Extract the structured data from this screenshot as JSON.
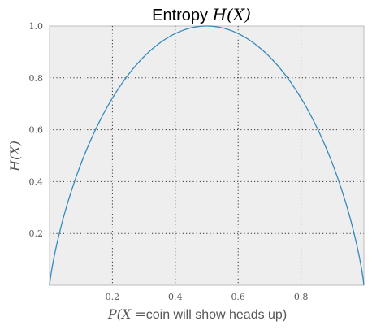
{
  "chart_data": {
    "type": "line",
    "title": {
      "text": "Entropy ",
      "math": "H(X)"
    },
    "xlabel": {
      "math_prefix": "P(X =",
      "text": "coin will show heads up)"
    },
    "ylabel": "H(X)",
    "xlim": [
      0,
      1
    ],
    "ylim": [
      0,
      1.0
    ],
    "xticks": [
      0.2,
      0.4,
      0.6,
      0.8
    ],
    "yticks": [
      0.2,
      0.4,
      0.6,
      0.8,
      1.0
    ],
    "xtick_labels": [
      "0.2",
      "0.4",
      "0.6",
      "0.8"
    ],
    "ytick_labels": [
      "0.2",
      "0.4",
      "0.6",
      "0.8",
      "1.0"
    ],
    "grid": true,
    "series": [
      {
        "function": "binary_entropy",
        "color": "#348ABD",
        "x": [
          0.005,
          0.01,
          0.02,
          0.03,
          0.05,
          0.075,
          0.1,
          0.15,
          0.2,
          0.25,
          0.3,
          0.35,
          0.4,
          0.45,
          0.5,
          0.55,
          0.6,
          0.65,
          0.7,
          0.75,
          0.8,
          0.85,
          0.9,
          0.925,
          0.95,
          0.97,
          0.98,
          0.99,
          0.995
        ],
        "y": [
          0.0454,
          0.0808,
          0.1414,
          0.1944,
          0.2864,
          0.3843,
          0.469,
          0.6098,
          0.7219,
          0.8113,
          0.8813,
          0.9341,
          0.971,
          0.9928,
          1.0,
          0.9928,
          0.971,
          0.9341,
          0.8813,
          0.8113,
          0.7219,
          0.6098,
          0.469,
          0.3843,
          0.2864,
          0.1944,
          0.1414,
          0.0808,
          0.0454
        ]
      }
    ],
    "colors": {
      "plot_background": "#EEEEEE",
      "plot_border": "#BCBCBC",
      "line": "#348ABD"
    }
  }
}
